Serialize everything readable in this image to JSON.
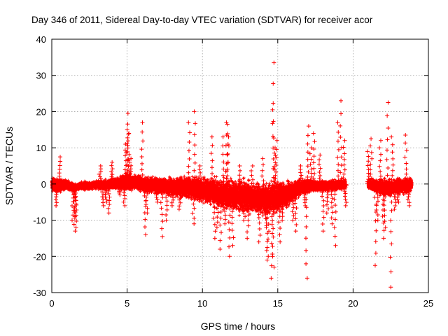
{
  "chart_data": {
    "type": "scatter",
    "title": "Day 346 of 2011, Sidereal Day-to-day VTEC variation (SDTVAR) for receiver acor",
    "xlabel": "GPS time / hours",
    "ylabel": "SDTVAR / TECUs",
    "xlim": [
      0,
      25
    ],
    "ylim": [
      -30,
      40
    ],
    "xticks": [
      0,
      5,
      10,
      15,
      20,
      25
    ],
    "yticks": [
      -30,
      -20,
      -10,
      0,
      10,
      20,
      30,
      40
    ],
    "grid": true,
    "marker": "+",
    "color": "#ff0000",
    "series": [
      {
        "name": "SDTVAR",
        "description": "dense band of points near 0 TECU from 0 to ~24 h with a data gap at ~19.8-20.8 h",
        "band": [
          [
            0.0,
            0.0,
            2.5
          ],
          [
            0.5,
            -0.5,
            2.5
          ],
          [
            1.0,
            -0.3,
            2.0
          ],
          [
            1.5,
            -1.0,
            1.5
          ],
          [
            2.0,
            -0.5,
            1.5
          ],
          [
            2.5,
            -0.5,
            1.5
          ],
          [
            3.0,
            -0.3,
            1.5
          ],
          [
            3.5,
            -0.3,
            2.0
          ],
          [
            4.0,
            0.0,
            2.0
          ],
          [
            4.5,
            0.3,
            2.5
          ],
          [
            5.0,
            0.5,
            3.0
          ],
          [
            5.5,
            0.5,
            3.0
          ],
          [
            6.0,
            0.0,
            3.0
          ],
          [
            6.5,
            -0.2,
            3.0
          ],
          [
            7.0,
            -0.5,
            3.0
          ],
          [
            7.5,
            -0.5,
            3.0
          ],
          [
            8.0,
            -0.8,
            3.5
          ],
          [
            8.5,
            -1.0,
            4.0
          ],
          [
            9.0,
            -1.0,
            4.0
          ],
          [
            9.5,
            -1.2,
            4.5
          ],
          [
            10.0,
            -1.5,
            5.0
          ],
          [
            10.5,
            -2.0,
            5.0
          ],
          [
            11.0,
            -2.5,
            5.5
          ],
          [
            11.5,
            -3.0,
            6.0
          ],
          [
            12.0,
            -3.0,
            6.0
          ],
          [
            12.5,
            -3.5,
            6.0
          ],
          [
            13.0,
            -3.5,
            6.0
          ],
          [
            13.5,
            -4.0,
            6.0
          ],
          [
            14.0,
            -4.0,
            6.0
          ],
          [
            14.5,
            -4.0,
            6.0
          ],
          [
            15.0,
            -3.5,
            6.0
          ],
          [
            15.5,
            -3.0,
            5.0
          ],
          [
            16.0,
            -2.0,
            4.0
          ],
          [
            16.5,
            -1.0,
            3.0
          ],
          [
            17.0,
            -0.5,
            2.5
          ],
          [
            17.5,
            -0.5,
            2.0
          ],
          [
            18.0,
            -0.5,
            2.0
          ],
          [
            18.5,
            -0.5,
            2.0
          ],
          [
            19.0,
            -0.3,
            2.0
          ],
          [
            19.5,
            0.0,
            2.0
          ],
          [
            21.0,
            0.0,
            2.0
          ],
          [
            21.5,
            -0.5,
            2.5
          ],
          [
            22.0,
            -1.0,
            3.0
          ],
          [
            22.5,
            -1.0,
            3.0
          ],
          [
            23.0,
            -0.5,
            3.0
          ],
          [
            23.5,
            -0.5,
            3.0
          ],
          [
            23.9,
            0.0,
            2.5
          ]
        ],
        "spikes": [
          [
            0.3,
            -6
          ],
          [
            0.5,
            7.5
          ],
          [
            1.4,
            -10
          ],
          [
            1.5,
            -13
          ],
          [
            1.6,
            -12
          ],
          [
            1.55,
            -9
          ],
          [
            3.2,
            5
          ],
          [
            3.4,
            -6
          ],
          [
            3.6,
            -5
          ],
          [
            3.8,
            -8
          ],
          [
            4.0,
            6
          ],
          [
            4.5,
            -3
          ],
          [
            4.9,
            11
          ],
          [
            5.0,
            15
          ],
          [
            5.05,
            19.5
          ],
          [
            5.1,
            14
          ],
          [
            5.2,
            7
          ],
          [
            4.8,
            -6
          ],
          [
            6.0,
            17
          ],
          [
            6.2,
            -14
          ],
          [
            6.3,
            -8
          ],
          [
            7.0,
            -5
          ],
          [
            7.3,
            -14.5
          ],
          [
            7.6,
            -10
          ],
          [
            8.0,
            -6
          ],
          [
            8.5,
            -7
          ],
          [
            9.1,
            17
          ],
          [
            9.5,
            20
          ],
          [
            9.8,
            5
          ],
          [
            9.4,
            -11
          ],
          [
            10.6,
            13
          ],
          [
            10.8,
            -15
          ],
          [
            11.0,
            -12
          ],
          [
            11.2,
            -18
          ],
          [
            11.4,
            13
          ],
          [
            11.5,
            -11
          ],
          [
            11.6,
            16.5
          ],
          [
            11.65,
            17
          ],
          [
            11.7,
            13
          ],
          [
            11.8,
            -20
          ],
          [
            12.0,
            -17
          ],
          [
            12.5,
            5
          ],
          [
            12.8,
            -10
          ],
          [
            13.0,
            -15
          ],
          [
            13.3,
            5
          ],
          [
            13.8,
            -16
          ],
          [
            14.0,
            7
          ],
          [
            14.2,
            -12
          ],
          [
            14.3,
            -21
          ],
          [
            14.35,
            -20
          ],
          [
            14.5,
            -7
          ],
          [
            14.6,
            -26
          ],
          [
            14.7,
            -23
          ],
          [
            14.75,
            33.5
          ],
          [
            14.7,
            20.5
          ],
          [
            14.8,
            10
          ],
          [
            14.9,
            12
          ],
          [
            15.1,
            -16
          ],
          [
            15.3,
            -10
          ],
          [
            16.0,
            -10
          ],
          [
            16.2,
            -13
          ],
          [
            16.5,
            5
          ],
          [
            16.8,
            -6
          ],
          [
            16.9,
            -26
          ],
          [
            17.0,
            16
          ],
          [
            17.2,
            10
          ],
          [
            17.4,
            14
          ],
          [
            17.8,
            8
          ],
          [
            18.0,
            -13
          ],
          [
            18.3,
            -8
          ],
          [
            18.6,
            -11
          ],
          [
            18.8,
            -17
          ],
          [
            19.0,
            17
          ],
          [
            19.2,
            23
          ],
          [
            19.4,
            12
          ],
          [
            19.5,
            -6
          ],
          [
            21.0,
            9
          ],
          [
            21.2,
            12.5
          ],
          [
            21.5,
            -22.5
          ],
          [
            21.6,
            -10
          ],
          [
            21.8,
            12
          ],
          [
            22.0,
            -15
          ],
          [
            22.1,
            -12
          ],
          [
            22.3,
            22.5
          ],
          [
            22.5,
            -28.5
          ],
          [
            22.6,
            13
          ],
          [
            22.8,
            -7
          ],
          [
            23.0,
            -5
          ],
          [
            23.5,
            13.5
          ],
          [
            23.7,
            -6
          ]
        ]
      }
    ]
  }
}
